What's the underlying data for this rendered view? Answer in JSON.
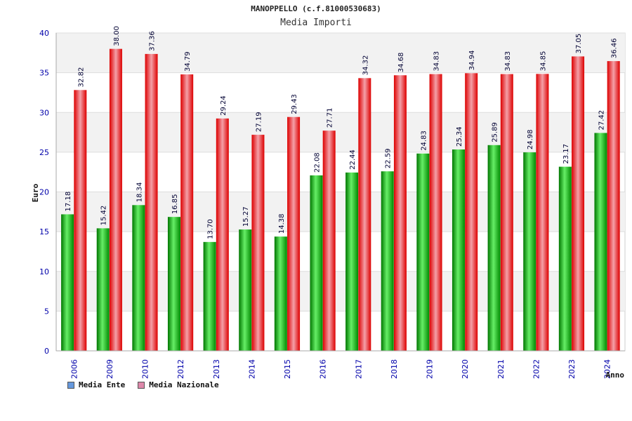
{
  "title": "MANOPPELLO (c.f.81000530683)",
  "subtitle": "Media Importi",
  "legend": [
    {
      "label": "Media Ente",
      "color": "#6699dd"
    },
    {
      "label": "Media Nazionale",
      "color": "#dd88aa"
    }
  ],
  "chart_data": {
    "type": "bar",
    "title": "MANOPPELLO (c.f.81000530683)",
    "subtitle": "Media Importi",
    "xlabel": "Anno",
    "ylabel": "Euro",
    "ylim": [
      0,
      40
    ],
    "yticks": [
      0,
      5,
      10,
      15,
      20,
      25,
      30,
      35,
      40
    ],
    "categories": [
      "2006",
      "2009",
      "2010",
      "2012",
      "2013",
      "2014",
      "2015",
      "2016",
      "2017",
      "2018",
      "2019",
      "2020",
      "2021",
      "2022",
      "2023",
      "2024"
    ],
    "series": [
      {
        "name": "Media Ente",
        "color": "#00aa00",
        "values": [
          17.18,
          15.42,
          18.34,
          16.85,
          13.7,
          15.27,
          14.38,
          22.08,
          22.44,
          22.59,
          24.83,
          25.34,
          25.89,
          24.98,
          23.17,
          27.42
        ],
        "labels": [
          "17.18",
          "15.42",
          "18.34",
          "16.85",
          "13.70",
          "15.27",
          "14.38",
          "22.08",
          "22.44",
          "22.59",
          "24.83",
          "25.34",
          "25.89",
          "24.98",
          "23.17",
          "27.42"
        ]
      },
      {
        "name": "Media Nazionale",
        "color": "#ee1111",
        "values": [
          32.82,
          38.0,
          37.36,
          34.79,
          29.24,
          27.19,
          29.43,
          27.71,
          34.32,
          34.68,
          34.83,
          34.94,
          34.83,
          34.85,
          37.05,
          36.46
        ],
        "labels": [
          "32.82",
          "38.00",
          "37.36",
          "34.79",
          "29.24",
          "27.19",
          "29.43",
          "27.71",
          "34.32",
          "34.68",
          "34.83",
          "34.94",
          "34.83",
          "34.85",
          "37.05",
          "36.46"
        ]
      }
    ],
    "grid": true,
    "legend_position": "bottom-left"
  }
}
